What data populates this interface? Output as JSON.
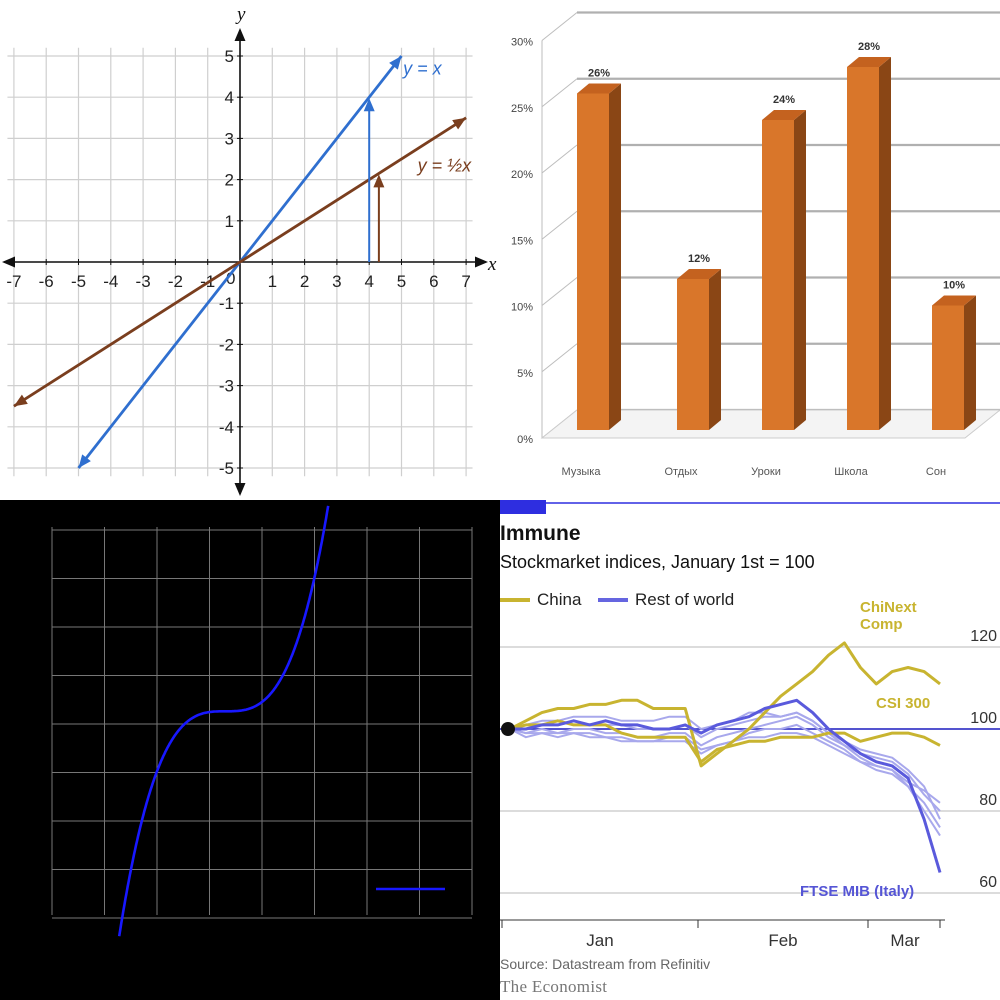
{
  "chart_data": [
    {
      "type": "line",
      "panel": "top-left",
      "xlabel": "x",
      "ylabel": "y",
      "xlim": [
        -7,
        7
      ],
      "ylim": [
        -5,
        5
      ],
      "x_ticks": [
        "-7",
        "-6",
        "-5",
        "-4",
        "-3",
        "-2",
        "-1",
        "0",
        "1",
        "2",
        "3",
        "4",
        "5",
        "6",
        "7"
      ],
      "y_ticks": [
        "-5",
        "-4",
        "-3",
        "-2",
        "-1",
        "1",
        "2",
        "3",
        "4",
        "5"
      ],
      "grid": true,
      "series": [
        {
          "name": "y = x",
          "slope": 1,
          "x": [
            -5,
            5
          ],
          "y": [
            -5,
            5
          ],
          "color": "#2f6fcf"
        },
        {
          "name": "y = ½x",
          "slope": 0.5,
          "x": [
            -7,
            7
          ],
          "y": [
            -3.5,
            3.5
          ],
          "color": "#7a3e1e"
        }
      ],
      "annotations": [
        {
          "type": "vertical-arrow",
          "x": 4,
          "y_from": 0,
          "y_to": 4,
          "color": "#2f6fcf"
        },
        {
          "type": "vertical-arrow",
          "x": 4.3,
          "y_from": 0,
          "y_to": 2.15,
          "color": "#7a3e1e"
        }
      ]
    },
    {
      "type": "bar",
      "panel": "top-right",
      "categories": [
        "Музыка",
        "Отдых",
        "Уроки",
        "Школа",
        "Сон"
      ],
      "values": [
        26,
        12,
        24,
        28,
        10
      ],
      "data_labels": [
        "26%",
        "12%",
        "24%",
        "28%",
        "10%"
      ],
      "y_ticks": [
        "0%",
        "5%",
        "10%",
        "15%",
        "20%",
        "25%",
        "30%"
      ],
      "ylim": [
        0,
        30
      ],
      "grid": true,
      "color": "#d9762a"
    },
    {
      "type": "line",
      "panel": "bottom-left",
      "background": "#000000",
      "grid": true,
      "color": "#1818ff",
      "xlim": [
        -2,
        2
      ],
      "ylim": [
        -4,
        4
      ],
      "series": [
        {
          "function": "cubic",
          "x0": -0.35,
          "y0": 0.2,
          "coef": 4.5
        }
      ],
      "legend_line": true
    },
    {
      "type": "line",
      "panel": "bottom-right",
      "title": "Immune",
      "subtitle": "Stockmarket indices, January 1st = 100",
      "x_ticks": [
        "Jan",
        "Feb",
        "Mar"
      ],
      "y_ticks": [
        "60",
        "80",
        "100",
        "120"
      ],
      "ylim": [
        60,
        125
      ],
      "grid": true,
      "source": "Source: Datastream from Refinitiv",
      "brand": "The Economist",
      "legend": [
        {
          "label": "China",
          "color": "#c8b430"
        },
        {
          "label": "Rest of world",
          "color": "#6565e0"
        }
      ],
      "annotations": [
        {
          "text": "ChiNext Comp",
          "color": "#c8b430"
        },
        {
          "text": "CSI 300",
          "color": "#c8b430"
        },
        {
          "text": "FTSE MIB (Italy)",
          "color": "#5555d5"
        }
      ],
      "series": [
        {
          "name": "ChiNext Comp",
          "group": "China",
          "color": "#c8b430",
          "x": [
            0,
            2,
            4,
            6,
            8,
            10,
            12,
            14,
            16,
            18,
            20,
            22,
            24,
            26,
            28,
            30,
            32,
            34,
            36,
            38,
            40,
            42,
            44,
            46,
            48,
            50,
            52,
            54
          ],
          "y": [
            100,
            102,
            104,
            105,
            105,
            106,
            106,
            107,
            107,
            105,
            105,
            105,
            91,
            94,
            97,
            100,
            104,
            108,
            111,
            114,
            118,
            121,
            115,
            111,
            114,
            115,
            114,
            111
          ]
        },
        {
          "name": "CSI 300",
          "group": "China",
          "color": "#c8b430",
          "x": [
            0,
            2,
            4,
            6,
            8,
            10,
            12,
            14,
            16,
            18,
            20,
            22,
            24,
            26,
            28,
            30,
            32,
            34,
            36,
            38,
            40,
            42,
            44,
            46,
            48,
            50,
            52,
            54
          ],
          "y": [
            100,
            101,
            101,
            102,
            101,
            101,
            101,
            99,
            98,
            98,
            98,
            98,
            92,
            95,
            96,
            97,
            97,
            98,
            98,
            98,
            99,
            99,
            97,
            98,
            99,
            99,
            98,
            96
          ]
        },
        {
          "name": "FTSE MIB (Italy)",
          "group": "Rest of world",
          "color": "#5a5adc",
          "x": [
            0,
            2,
            4,
            6,
            8,
            10,
            12,
            14,
            16,
            18,
            20,
            22,
            24,
            26,
            28,
            30,
            32,
            34,
            36,
            38,
            40,
            42,
            44,
            46,
            48,
            50,
            52,
            54
          ],
          "y": [
            100,
            100,
            101,
            101,
            102,
            101,
            102,
            101,
            101,
            100,
            100,
            101,
            99,
            101,
            102,
            103,
            105,
            106,
            107,
            104,
            100,
            97,
            94,
            92,
            91,
            88,
            78,
            65
          ]
        },
        {
          "name": "",
          "group": "Rest of world",
          "color": "#a8a8ec",
          "x": [
            0,
            2,
            4,
            6,
            8,
            10,
            12,
            14,
            16,
            18,
            20,
            22,
            24,
            26,
            28,
            30,
            32,
            34,
            36,
            38,
            40,
            42,
            44,
            46,
            48,
            50,
            52,
            54
          ],
          "y": [
            100,
            99,
            100,
            99,
            100,
            100,
            99,
            99,
            98,
            98,
            99,
            99,
            96,
            98,
            99,
            100,
            101,
            102,
            103,
            101,
            98,
            96,
            93,
            91,
            90,
            86,
            82,
            76
          ]
        },
        {
          "name": "",
          "group": "Rest of world",
          "color": "#a8a8ec",
          "x": [
            0,
            2,
            4,
            6,
            8,
            10,
            12,
            14,
            16,
            18,
            20,
            22,
            24,
            26,
            28,
            30,
            32,
            34,
            36,
            38,
            40,
            42,
            44,
            46,
            48,
            50,
            52,
            54
          ],
          "y": [
            100,
            101,
            102,
            102,
            103,
            103,
            103,
            102,
            102,
            102,
            103,
            103,
            100,
            101,
            102,
            104,
            104,
            103,
            104,
            102,
            99,
            96,
            94,
            93,
            92,
            89,
            84,
            80
          ]
        },
        {
          "name": "",
          "group": "Rest of world",
          "color": "#a8a8ec",
          "x": [
            0,
            2,
            4,
            6,
            8,
            10,
            12,
            14,
            16,
            18,
            20,
            22,
            24,
            26,
            28,
            30,
            32,
            34,
            36,
            38,
            40,
            42,
            44,
            46,
            48,
            50,
            52,
            54
          ],
          "y": [
            100,
            98,
            99,
            98,
            99,
            99,
            98,
            97,
            97,
            97,
            98,
            98,
            95,
            96,
            97,
            99,
            100,
            100,
            101,
            99,
            97,
            95,
            92,
            91,
            90,
            87,
            85,
            82
          ]
        },
        {
          "name": "",
          "group": "Rest of world",
          "color": "#a8a8ec",
          "x": [
            0,
            2,
            4,
            6,
            8,
            10,
            12,
            14,
            16,
            18,
            20,
            22,
            24,
            26,
            28,
            30,
            32,
            34,
            36,
            38,
            40,
            42,
            44,
            46,
            48,
            50,
            52,
            54
          ],
          "y": [
            100,
            101,
            101,
            101,
            102,
            101,
            101,
            101,
            100,
            100,
            100,
            101,
            98,
            100,
            101,
            102,
            103,
            103,
            104,
            102,
            99,
            97,
            95,
            94,
            93,
            90,
            86,
            78
          ]
        },
        {
          "name": "",
          "group": "Rest of world",
          "color": "#a8a8ec",
          "x": [
            0,
            2,
            4,
            6,
            8,
            10,
            12,
            14,
            16,
            18,
            20,
            22,
            24,
            26,
            28,
            30,
            32,
            34,
            36,
            38,
            40,
            42,
            44,
            46,
            48,
            50,
            52,
            54
          ],
          "y": [
            100,
            99,
            99,
            99,
            99,
            98,
            98,
            98,
            97,
            97,
            97,
            97,
            94,
            96,
            97,
            98,
            98,
            99,
            99,
            98,
            96,
            94,
            92,
            90,
            89,
            86,
            80,
            74
          ]
        }
      ]
    }
  ]
}
